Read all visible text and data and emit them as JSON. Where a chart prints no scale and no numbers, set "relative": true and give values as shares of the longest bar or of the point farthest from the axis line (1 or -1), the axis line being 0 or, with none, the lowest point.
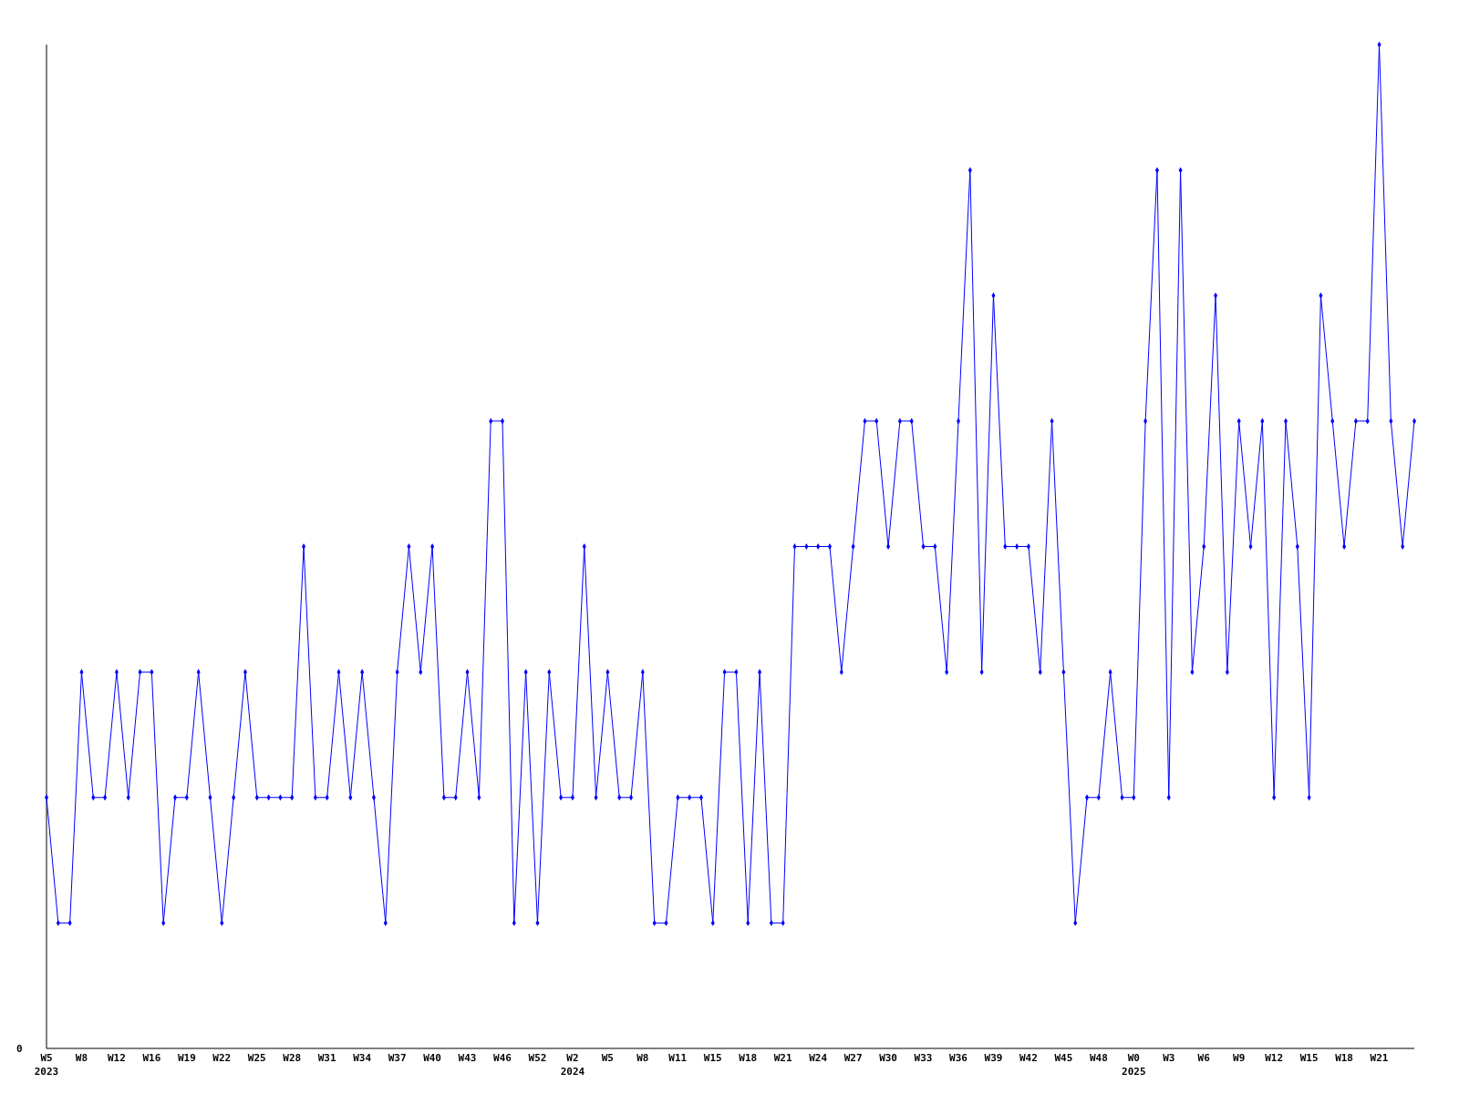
{
  "chart_data": {
    "type": "line",
    "relative": true,
    "marker": "diamond",
    "line_style": "solid",
    "annotations": [
      "0"
    ],
    "categories": [
      "W5\n2023",
      null,
      null,
      "W8",
      null,
      null,
      "W12",
      null,
      null,
      "W16",
      null,
      null,
      "W19",
      null,
      null,
      "W22",
      null,
      null,
      "W25",
      null,
      null,
      "W28",
      null,
      null,
      "W31",
      null,
      null,
      "W34",
      null,
      null,
      "W37",
      null,
      null,
      "W40",
      null,
      null,
      "W43",
      null,
      null,
      "W46",
      null,
      null,
      "W52",
      null,
      null,
      "W2\n2024",
      null,
      null,
      "W5",
      null,
      null,
      "W8",
      null,
      null,
      "W11",
      null,
      null,
      "W15",
      null,
      null,
      "W18",
      null,
      null,
      "W21",
      null,
      null,
      "W24",
      null,
      null,
      "W27",
      null,
      null,
      "W30",
      null,
      null,
      "W33",
      null,
      null,
      "W36",
      null,
      null,
      "W39",
      null,
      null,
      "W42",
      null,
      null,
      "W45",
      null,
      null,
      "W48",
      null,
      null,
      "W0\n2025",
      null,
      null,
      "W3",
      null,
      null,
      "W6",
      null,
      null,
      "W9",
      null,
      null,
      "W12",
      null,
      null,
      "W15",
      null,
      null,
      "W18",
      null,
      null,
      "W21",
      null,
      null,
      null
    ],
    "series": [
      {
        "color": "#0000ff",
        "values": [
          0.25,
          0.125,
          0.125,
          0.375,
          0.25,
          0.25,
          0.375,
          0.25,
          0.375,
          0.375,
          0.125,
          0.25,
          0.25,
          0.375,
          0.25,
          0.125,
          0.25,
          0.375,
          0.25,
          0.25,
          0.25,
          0.25,
          0.5,
          0.25,
          0.25,
          0.375,
          0.25,
          0.375,
          0.25,
          0.125,
          0.375,
          0.5,
          0.375,
          0.5,
          0.25,
          0.25,
          0.375,
          0.25,
          0.625,
          0.625,
          0.125,
          0.375,
          0.125,
          0.375,
          0.25,
          0.25,
          0.5,
          0.25,
          0.375,
          0.25,
          0.25,
          0.375,
          0.125,
          0.125,
          0.25,
          0.25,
          0.25,
          0.125,
          0.375,
          0.375,
          0.125,
          0.375,
          0.125,
          0.125,
          0.5,
          0.5,
          0.5,
          0.5,
          0.375,
          0.5,
          0.625,
          0.625,
          0.5,
          0.625,
          0.625,
          0.5,
          0.5,
          0.375,
          0.625,
          0.875,
          0.375,
          0.75,
          0.5,
          0.5,
          0.5,
          0.375,
          0.625,
          0.375,
          0.125,
          0.25,
          0.25,
          0.375,
          0.25,
          0.25,
          0.625,
          0.875,
          0.25,
          0.875,
          0.375,
          0.5,
          0.75,
          0.375,
          0.625,
          0.5,
          0.625,
          0.25,
          0.625,
          0.5,
          0.25,
          0.75,
          0.625,
          0.5,
          0.625,
          0.625,
          1,
          0.625,
          0.5,
          0.625
        ]
      }
    ]
  }
}
